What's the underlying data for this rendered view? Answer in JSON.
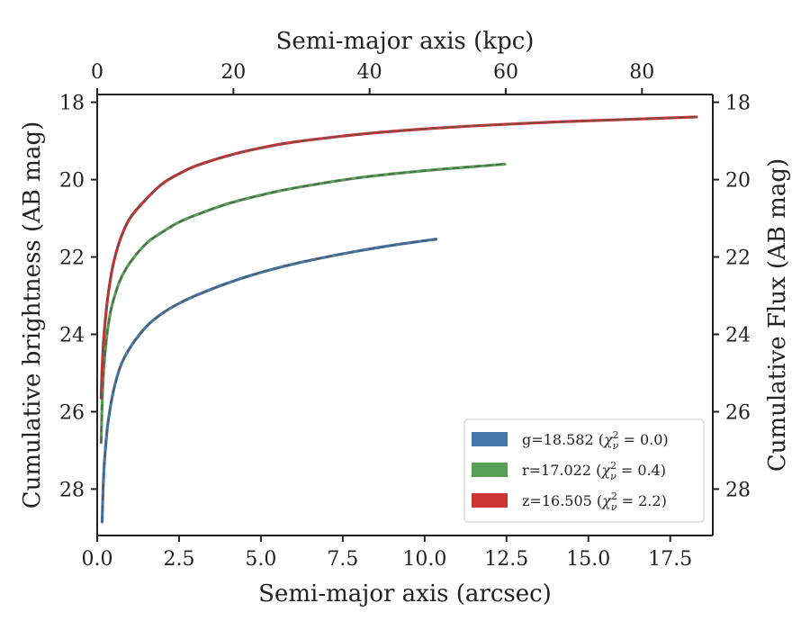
{
  "chart_data": {
    "type": "line",
    "xlabel": "Semi-major axis (arcsec)",
    "x2label": "Semi-major axis (kpc)",
    "ylabel": "Cumulative brightness (AB mag)",
    "y2label": "Cumulative Flux (AB mag)",
    "xlim": [
      0,
      18.8
    ],
    "x2lim": [
      0,
      90.4
    ],
    "ylim": [
      29.2,
      17.8
    ],
    "y_inverted": true,
    "xticks": [
      0.0,
      2.5,
      5.0,
      7.5,
      10.0,
      12.5,
      15.0,
      17.5
    ],
    "xtick_labels": [
      "0.0",
      "2.5",
      "5.0",
      "7.5",
      "10.0",
      "12.5",
      "15.0",
      "17.5"
    ],
    "x2ticks": [
      0,
      20,
      40,
      60,
      80
    ],
    "x2tick_labels": [
      "0",
      "20",
      "40",
      "60",
      "80"
    ],
    "yticks": [
      18,
      20,
      22,
      24,
      26,
      28
    ],
    "ytick_labels": [
      "18",
      "20",
      "22",
      "24",
      "26",
      "28"
    ],
    "legend_position": "lower-right",
    "grid": false,
    "series": [
      {
        "name": "g=18.582 (χ²ν = 0.0)",
        "legend_main": "g=18.582 (",
        "legend_sym": "χ",
        "legend_sub": "ν",
        "legend_sup": "2",
        "legend_val": " = 0.0)",
        "color": "#4477aa",
        "x": [
          0.15,
          0.2,
          0.3,
          0.4,
          0.5,
          0.7,
          1.0,
          1.5,
          2.0,
          2.5,
          3.0,
          4.0,
          5.0,
          6.0,
          7.0,
          8.0,
          9.0,
          10.0,
          10.35
        ],
        "y": [
          28.85,
          27.6,
          26.5,
          25.9,
          25.45,
          24.85,
          24.35,
          23.8,
          23.45,
          23.2,
          23.0,
          22.67,
          22.4,
          22.18,
          22.0,
          21.84,
          21.7,
          21.58,
          21.54
        ]
      },
      {
        "name": "r=17.022 (χ²ν = 0.4)",
        "legend_main": "r=17.022 (",
        "legend_sym": "χ",
        "legend_sub": "ν",
        "legend_sup": "2",
        "legend_val": " = 0.4)",
        "color": "#55a055",
        "x": [
          0.12,
          0.15,
          0.2,
          0.3,
          0.4,
          0.5,
          0.7,
          1.0,
          1.5,
          2.0,
          2.5,
          3.0,
          4.0,
          5.0,
          6.0,
          8.0,
          10.0,
          12.0,
          12.45
        ],
        "y": [
          26.8,
          25.8,
          24.9,
          24.0,
          23.45,
          23.1,
          22.6,
          22.15,
          21.65,
          21.35,
          21.1,
          20.92,
          20.62,
          20.4,
          20.22,
          19.95,
          19.77,
          19.63,
          19.6
        ]
      },
      {
        "name": "z=16.505 (χ²ν = 2.2)",
        "legend_main": "z=16.505 (",
        "legend_sym": "χ",
        "legend_sub": "ν",
        "legend_sup": "2",
        "legend_val": " = 2.2)",
        "color": "#cc3333",
        "x": [
          0.12,
          0.15,
          0.2,
          0.3,
          0.4,
          0.5,
          0.7,
          1.0,
          1.5,
          2.0,
          2.5,
          3.0,
          4.0,
          5.0,
          6.0,
          8.0,
          10.0,
          12.0,
          14.0,
          16.0,
          18.3
        ],
        "y": [
          25.65,
          24.9,
          24.1,
          23.2,
          22.6,
          22.15,
          21.55,
          21.0,
          20.5,
          20.1,
          19.85,
          19.65,
          19.38,
          19.18,
          19.03,
          18.83,
          18.69,
          18.59,
          18.51,
          18.45,
          18.38
        ]
      }
    ]
  }
}
